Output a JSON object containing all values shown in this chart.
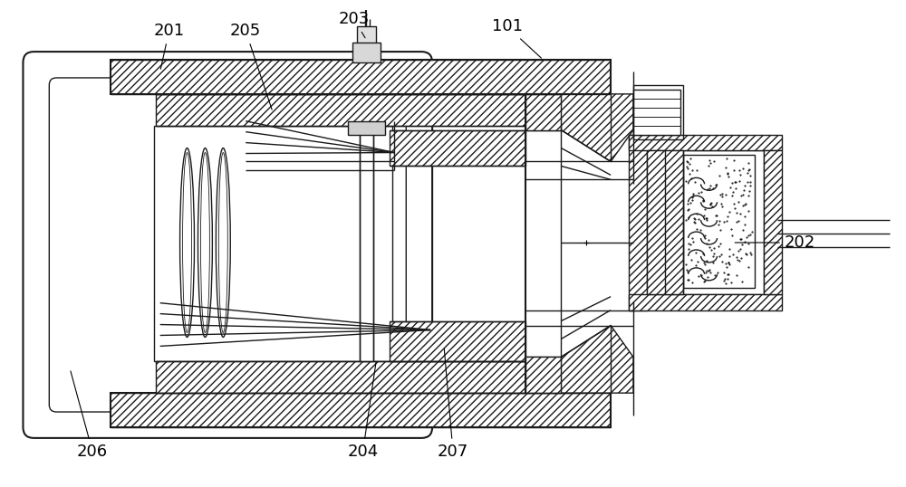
{
  "bg_color": "#ffffff",
  "line_color": "#1a1a1a",
  "fig_width": 10.0,
  "fig_height": 5.38,
  "dpi": 100,
  "label_fontsize": 13
}
